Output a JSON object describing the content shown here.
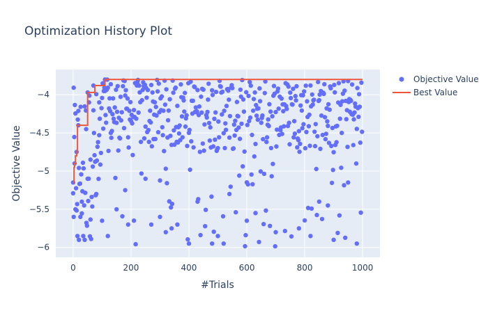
{
  "chart_data": {
    "type": "scatter",
    "title": "Optimization History Plot",
    "xlabel": "#Trials",
    "ylabel": "Objective Value",
    "xlim": [
      -60,
      1060
    ],
    "ylim": [
      -6.13,
      -3.67
    ],
    "xticks": [
      0,
      200,
      400,
      600,
      800,
      1000
    ],
    "yticks": [
      -6,
      -5.5,
      -5,
      -4.5,
      -4
    ],
    "ytick_labels": [
      "−6",
      "−5.5",
      "−5",
      "−4.5",
      "−4"
    ],
    "grid": true,
    "legend_position": "top-right",
    "legend": [
      "Objective Value",
      "Best Value"
    ],
    "colors": {
      "points": "#636efa",
      "best": "#ef553b",
      "plot_bg": "#e5ecf6",
      "grid": "#ffffff",
      "text": "#2a3f5f"
    },
    "n_trials": 1000,
    "series": [
      {
        "name": "Best Value",
        "mode": "line",
        "x": [
          0,
          3,
          5,
          8,
          12,
          15,
          20,
          50,
          75,
          110,
          1000
        ],
        "y": [
          -5.15,
          -4.95,
          -4.9,
          -4.8,
          -4.75,
          -4.4,
          -4.4,
          -3.97,
          -3.88,
          -3.8,
          -3.8
        ]
      }
    ],
    "objective_value_sample": {
      "name": "Objective Value",
      "mode": "markers",
      "x": [
        0,
        2,
        5,
        8,
        12,
        15,
        18,
        20,
        25,
        30,
        35,
        40,
        45,
        50,
        55,
        60,
        70,
        80,
        90,
        100,
        110,
        120,
        130,
        150,
        180,
        190,
        210,
        250,
        270,
        300,
        320,
        340,
        360,
        400,
        430,
        480,
        500,
        520,
        540,
        600,
        630,
        700,
        780,
        820,
        850,
        880,
        900,
        950,
        980
      ],
      "y": [
        -5.15,
        -5.6,
        -4.9,
        -5.5,
        -4.75,
        -5.85,
        -4.4,
        -5.9,
        -5.6,
        -5.4,
        -5.85,
        -5.9,
        -4.45,
        -3.97,
        -4.1,
        -4.85,
        -3.88,
        -5.3,
        -4.1,
        -5.65,
        -3.8,
        -5.85,
        -4.5,
        -5.5,
        -5.25,
        -5.7,
        -4.2,
        -5.1,
        -5.7,
        -5.6,
        -5.8,
        -5.75,
        -5.7,
        -5.95,
        -5.4,
        -5.95,
        -5.85,
        -5.95,
        -5.3,
        -5.65,
        -5.55,
        -5.8,
        -5.75,
        -5.85,
        -5.4,
        -5.45,
        -5.9,
        -5.15,
        -5.95
      ]
    }
  }
}
